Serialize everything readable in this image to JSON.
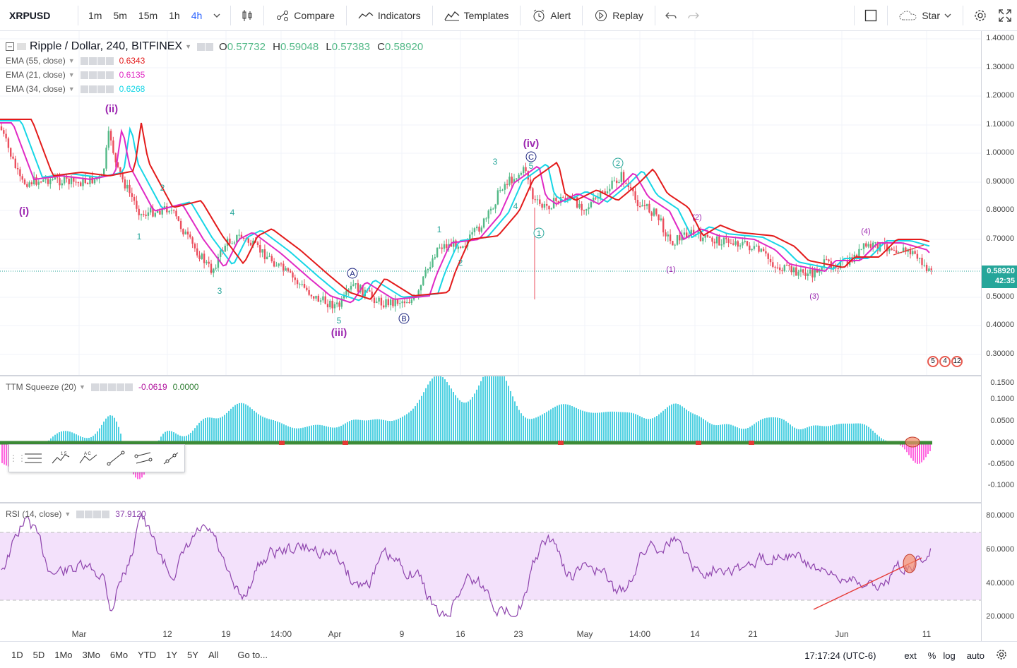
{
  "toolbar": {
    "symbol": "XRPUSD",
    "intervals": [
      "1m",
      "5m",
      "15m",
      "1h",
      "4h"
    ],
    "active_interval": "4h",
    "compare_label": "Compare",
    "indicators_label": "Indicators",
    "templates_label": "Templates",
    "alert_label": "Alert",
    "replay_label": "Replay",
    "star_label": "Star"
  },
  "main_legend": {
    "title": "Ripple / Dollar, 240, BITFINEX",
    "o_label": "O",
    "o": "0.57732",
    "h_label": "H",
    "h": "0.59048",
    "l_label": "L",
    "l": "0.57383",
    "c_label": "C",
    "c": "0.58920"
  },
  "ema_legends": [
    {
      "label": "EMA (55, close)",
      "value": "0.6343",
      "color": "#e31b1b"
    },
    {
      "label": "EMA (21, close)",
      "value": "0.6135",
      "color": "#e02ac4"
    },
    {
      "label": "EMA (34, close)",
      "value": "0.6268",
      "color": "#17d6e6"
    }
  ],
  "price_axis": {
    "labels": [
      "1.40000",
      "1.30000",
      "1.20000",
      "1.10000",
      "1.00000",
      "0.90000",
      "0.80000",
      "0.70000",
      "0.60000",
      "0.50000",
      "0.40000",
      "0.30000"
    ],
    "current_price": "0.58920",
    "countdown": "42:35"
  },
  "wave_labels": {
    "i": "(i)",
    "ii": "(ii)",
    "iii": "(iii)",
    "iv": "(iv)",
    "sub1": "1",
    "sub2": "2",
    "sub3": "3",
    "sub4": "4",
    "sub5": "5",
    "A": "A",
    "B": "B",
    "C": "C",
    "c1": "1",
    "c2": "2",
    "p1": "(1)",
    "p2": "(2)",
    "p3": "(3)",
    "p4": "(4)"
  },
  "events_badge": {
    "a": "5",
    "b": "4",
    "c": "12"
  },
  "ttm": {
    "label": "TTM Squeeze (20)",
    "value1": "-0.0619",
    "value2": "0.0000",
    "axis_labels": [
      "0.1500",
      "0.1000",
      "0.0500",
      "0.0000",
      "-0.0500",
      "-0.1000"
    ]
  },
  "rsi": {
    "label": "RSI (14, close)",
    "value": "37.9120",
    "axis_labels": [
      "80.0000",
      "60.0000",
      "40.0000",
      "20.0000"
    ]
  },
  "time_axis": [
    "Mar",
    "12",
    "19",
    "14:00",
    "Apr",
    "9",
    "16",
    "23",
    "May",
    "14:00",
    "14",
    "21",
    "Jun",
    "11"
  ],
  "bottom_bar": {
    "ranges": [
      "1D",
      "5D",
      "1Mo",
      "3Mo",
      "6Mo",
      "YTD",
      "1Y",
      "5Y",
      "All"
    ],
    "goto": "Go to...",
    "clock": "17:17:24 (UTC-6)",
    "ext": "ext",
    "percent": "%",
    "log": "log",
    "auto": "auto"
  },
  "colors": {
    "up": "#53b987",
    "down": "#eb4d5c",
    "ema55": "#e31b1b",
    "ema21": "#e02ac4",
    "ema34": "#17d6e6",
    "wave_purple": "#9c27b0",
    "wave_teal": "#26a69a",
    "wave_navy": "#1a237e",
    "rsi": "#8e44ad",
    "ttm_pos": "#4dd0e1",
    "ttm_neg": "#ff66e0",
    "squeeze_on": "#2e7d32"
  }
}
